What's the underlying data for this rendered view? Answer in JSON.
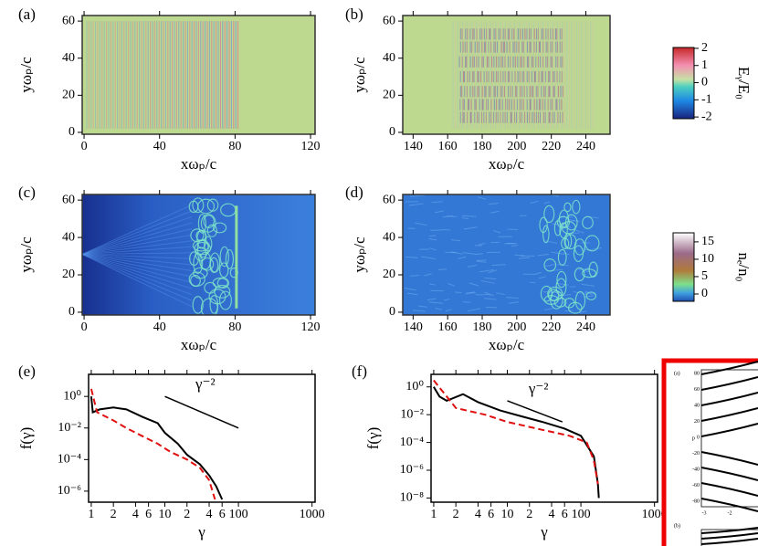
{
  "chart_data": [
    {
      "type": "heatmap",
      "panel": "(a)",
      "xlabel": "xωₚ/c",
      "ylabel": "yωₚ/c",
      "xlim": [
        -1,
        122.4
      ],
      "ylim": [
        -1,
        63
      ],
      "xticks": [
        0,
        40,
        80,
        120
      ],
      "yticks": [
        0,
        20,
        40,
        60
      ]
    },
    {
      "type": "heatmap",
      "panel": "(b)",
      "xlabel": "xωₚ/c",
      "ylabel": "yωₚ/c",
      "xlim": [
        134,
        254
      ],
      "ylim": [
        -1,
        63
      ],
      "xticks": [
        140,
        160,
        180,
        200,
        220,
        240
      ],
      "yticks": [
        0,
        20,
        40,
        60
      ]
    },
    {
      "type": "heatmap",
      "panel": "(c)",
      "xlabel": "xωₚ/c",
      "ylabel": "yωₚ/c",
      "xlim": [
        -1,
        122.4
      ],
      "ylim": [
        -1.5,
        63
      ],
      "xticks": [
        0,
        40,
        80,
        120
      ],
      "yticks": [
        0,
        20,
        40,
        60
      ]
    },
    {
      "type": "heatmap",
      "panel": "(d)",
      "xlabel": "xωₚ/c",
      "ylabel": "yωₚ/c",
      "xlim": [
        134,
        254
      ],
      "ylim": [
        -1.5,
        63
      ],
      "xticks": [
        140,
        160,
        180,
        200,
        220,
        240
      ],
      "yticks": [
        0,
        20,
        40,
        60
      ]
    },
    {
      "type": "line",
      "panel": "(e)",
      "xlabel": "γ",
      "ylabel": "f(γ)",
      "log_x": true,
      "log_y": true,
      "xlim": [
        0.92,
        1100
      ],
      "ylim": [
        2e-07,
        25
      ],
      "xticks": [
        1,
        2,
        4,
        6,
        10,
        {
          "value": 20,
          "label": "2"
        },
        {
          "value": 40,
          "label": "4"
        },
        {
          "value": 60,
          "label": "6"
        },
        100,
        1000
      ],
      "yticks": [
        {
          "value": 1,
          "label": "10⁰"
        },
        {
          "value": 0.01,
          "label": "10⁻²"
        },
        {
          "value": 0.0001,
          "label": "10⁻⁴"
        },
        {
          "value": 1e-06,
          "label": "10⁻⁶"
        }
      ],
      "annotation": {
        "text": "γ⁻²",
        "x": [
          10,
          100
        ],
        "values": [
          1,
          0.01
        ]
      },
      "series": [
        {
          "color": "#000000",
          "dash": false,
          "x": [
            1,
            1.05,
            1.3,
            2,
            3,
            5,
            8,
            10,
            15,
            20,
            30,
            40,
            50,
            60
          ],
          "values": [
            1,
            0.1,
            0.15,
            0.2,
            0.15,
            0.05,
            0.02,
            0.005,
            0.001,
            0.0002,
            5e-05,
            1e-05,
            2e-06,
            3e-07
          ]
        },
        {
          "color": "#e01010",
          "dash": true,
          "x": [
            1,
            1.2,
            2,
            3,
            5,
            8,
            12,
            20,
            30,
            40,
            48
          ],
          "values": [
            3,
            0.1,
            0.03,
            0.01,
            0.003,
            0.001,
            0.0003,
            0.0001,
            3e-05,
            5e-06,
            3e-07
          ]
        }
      ]
    },
    {
      "type": "line",
      "panel": "(f)",
      "xlabel": "γ",
      "ylabel": "f(γ)",
      "log_x": true,
      "log_y": true,
      "xlim": [
        0.92,
        1100
      ],
      "ylim": [
        5e-09,
        8
      ],
      "xticks": [
        1,
        2,
        4,
        6,
        10,
        {
          "value": 20,
          "label": "2"
        },
        {
          "value": 40,
          "label": "4"
        },
        {
          "value": 60,
          "label": "6"
        },
        100,
        1000
      ],
      "yticks": [
        {
          "value": 1,
          "label": "10⁰"
        },
        {
          "value": 0.01,
          "label": "10⁻²"
        },
        {
          "value": 0.0001,
          "label": "10⁻⁴"
        },
        {
          "value": 1e-06,
          "label": "10⁻⁶"
        },
        {
          "value": 1e-08,
          "label": "10⁻⁸"
        }
      ],
      "annotation": {
        "text": "γ⁻²",
        "x": [
          10,
          56
        ],
        "values": [
          0.1,
          0.003
        ]
      },
      "series": [
        {
          "color": "#000000",
          "dash": false,
          "x": [
            1,
            1.2,
            1.5,
            2.5,
            4,
            8,
            15,
            30,
            60,
            100,
            150,
            170,
            175
          ],
          "values": [
            1,
            0.2,
            0.1,
            0.3,
            0.08,
            0.02,
            0.008,
            0.003,
            0.001,
            0.0003,
            1e-05,
            1e-07,
            1e-08
          ]
        },
        {
          "color": "#e01010",
          "dash": true,
          "x": [
            1,
            2,
            5,
            10,
            30,
            70,
            120,
            150,
            170
          ],
          "values": [
            3,
            0.03,
            0.01,
            0.003,
            0.0008,
            0.0003,
            0.0001,
            5e-06,
            1e-07
          ]
        }
      ]
    },
    {
      "type": "colorbar",
      "label": "Eᵧ/E₀",
      "ylim": [
        -2.1,
        2.05
      ],
      "yticks": [
        2,
        1,
        0,
        -1,
        -2
      ]
    },
    {
      "type": "colorbar",
      "label": "nₑ/n₀",
      "ylim": [
        -2.1,
        17.6
      ],
      "yticks": [
        15,
        10,
        5,
        0
      ]
    }
  ],
  "inset": {
    "panels": [
      "(a)",
      "(b)"
    ],
    "ylabel": "p",
    "yticks": [
      80,
      60,
      40,
      20,
      0,
      -20,
      -40,
      -60,
      -80
    ],
    "xticks": [
      -3,
      -2
    ]
  }
}
